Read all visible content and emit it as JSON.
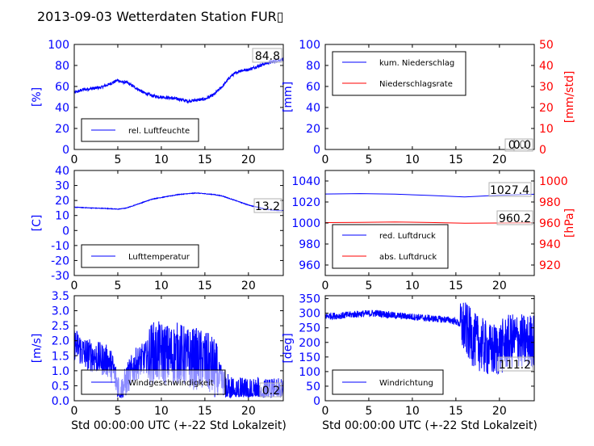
{
  "title": "2013-09-03 Wetterdaten Station FUR▯",
  "colors": {
    "primary": "#0000ff",
    "secondary": "#ff0000",
    "axis": "#000000"
  },
  "chart_data": [
    {
      "id": "humidity",
      "type": "line",
      "ylabel": "[%]",
      "xlim": [
        0,
        24
      ],
      "xticks": [
        0,
        5,
        10,
        15,
        20
      ],
      "ylim": [
        0,
        100
      ],
      "yticks": [
        0,
        20,
        40,
        60,
        80,
        100
      ],
      "series": [
        {
          "name": "rel. Luftfeuchte",
          "color": "#0000ff",
          "x": [
            0,
            1,
            2,
            3,
            4,
            5,
            5.5,
            6,
            7,
            8,
            9,
            10,
            11,
            12,
            13,
            14,
            15,
            16,
            17,
            18,
            19,
            20,
            21,
            22,
            23,
            24
          ],
          "y": [
            54,
            57,
            58,
            59,
            62,
            66,
            64,
            64,
            59,
            54,
            51,
            50,
            49,
            48,
            46,
            47,
            48,
            52,
            60,
            70,
            75,
            76,
            79,
            82,
            84,
            86
          ],
          "noise": 1.5
        }
      ],
      "annotations": [
        {
          "text": "84.8"
        }
      ]
    },
    {
      "id": "precipitation",
      "type": "line",
      "ylabel": "[mm]",
      "ylabel_right": "[mm/std]",
      "xlim": [
        0,
        24
      ],
      "xticks": [
        0,
        5,
        10,
        15,
        20
      ],
      "ylim": [
        0,
        100
      ],
      "yticks": [
        0,
        20,
        40,
        60,
        80,
        100
      ],
      "ylim_right": [
        0,
        50
      ],
      "yticks_right": [
        0,
        10,
        20,
        30,
        40,
        50
      ],
      "series": [
        {
          "name": "kum. Niederschlag",
          "color": "#0000ff",
          "axis": "left",
          "x": [
            0,
            24
          ],
          "y": [
            0,
            0
          ]
        },
        {
          "name": "Niederschlagsrate",
          "color": "#ff0000",
          "axis": "right",
          "x": [
            0,
            24
          ],
          "y": [
            0,
            0
          ]
        }
      ],
      "annotations": [
        {
          "text": "0.0"
        },
        {
          "text": "0.0"
        }
      ]
    },
    {
      "id": "temperature",
      "type": "line",
      "ylabel": "[C]",
      "xlim": [
        0,
        24
      ],
      "xticks": [
        0,
        5,
        10,
        15,
        20
      ],
      "ylim": [
        -30,
        40
      ],
      "yticks": [
        -30,
        -20,
        -10,
        0,
        10,
        20,
        30,
        40
      ],
      "series": [
        {
          "name": "Lufttemperatur",
          "color": "#0000ff",
          "x": [
            0,
            1,
            2,
            3,
            4,
            5,
            6,
            7,
            8,
            9,
            10,
            11,
            12,
            13,
            14,
            15,
            16,
            17,
            18,
            19,
            20,
            21,
            22,
            23,
            24
          ],
          "y": [
            15.5,
            15.3,
            15,
            14.8,
            14.6,
            14.2,
            15,
            17,
            19,
            21,
            22,
            23,
            24,
            24.5,
            25,
            24.5,
            24,
            23,
            21,
            19,
            17,
            15.5,
            14.2,
            13.5,
            13.2
          ],
          "noise": 0.2
        }
      ],
      "annotations": [
        {
          "text": "13.2"
        }
      ]
    },
    {
      "id": "pressure",
      "type": "line",
      "ylabel_right": "[hPa]",
      "xlim": [
        0,
        24
      ],
      "xticks": [
        0,
        5,
        10,
        15,
        20
      ],
      "ylim": [
        950,
        1050
      ],
      "yticks": [
        960,
        980,
        1000,
        1020,
        1040
      ],
      "ylim_right": [
        910,
        1010
      ],
      "yticks_right": [
        920,
        940,
        960,
        980,
        1000
      ],
      "series": [
        {
          "name": "red. Luftdruck",
          "color": "#0000ff",
          "axis": "left",
          "x": [
            0,
            4,
            8,
            12,
            16,
            20,
            24
          ],
          "y": [
            1027.6,
            1028.0,
            1027.5,
            1026.2,
            1024.8,
            1026.5,
            1027.4
          ]
        },
        {
          "name": "abs. Luftdruck",
          "color": "#ff0000",
          "axis": "right",
          "x": [
            0,
            4,
            8,
            12,
            16,
            20,
            24
          ],
          "y": [
            960.4,
            960.6,
            961.0,
            960.5,
            959.8,
            960.0,
            960.2
          ]
        }
      ],
      "annotations": [
        {
          "text": "1027.4"
        },
        {
          "text": "960.2"
        }
      ]
    },
    {
      "id": "windspeed",
      "type": "line",
      "ylabel": "[m/s]",
      "xlabel": "Std 00:00:00 UTC (+-22 Std Lokalzeit)",
      "xlim": [
        0,
        24
      ],
      "xticks": [
        0,
        5,
        10,
        15,
        20
      ],
      "ylim": [
        0,
        3.5
      ],
      "yticks": [
        0.0,
        0.5,
        1.0,
        1.5,
        2.0,
        2.5,
        3.0,
        3.5
      ],
      "series": [
        {
          "name": "Windgeschwindigkeit",
          "color": "#0000ff",
          "x": [
            0,
            0.5,
            1,
            2,
            3,
            4,
            4.5,
            5,
            5.5,
            6,
            7,
            8,
            9,
            10,
            11,
            12,
            13,
            14,
            15,
            16,
            16.5,
            17,
            17.5,
            18,
            19,
            20,
            21,
            22,
            23,
            24
          ],
          "y": [
            1.9,
            1.8,
            1.6,
            1.5,
            1.4,
            1.3,
            1.0,
            0.5,
            0.3,
            0.7,
            1.2,
            1.4,
            1.6,
            1.6,
            1.5,
            1.6,
            1.4,
            1.4,
            1.3,
            1.1,
            0.8,
            0.6,
            0.4,
            0.3,
            0.25,
            0.2,
            0.25,
            0.2,
            0.2,
            0.2
          ],
          "noise": 0.55
        }
      ],
      "annotations": [
        {
          "text": "0.2"
        }
      ]
    },
    {
      "id": "winddirection",
      "type": "line",
      "ylabel": "[deg]",
      "xlabel": "Std 00:00:00 UTC (+-22 Std Lokalzeit)",
      "xlim": [
        0,
        24
      ],
      "xticks": [
        0,
        5,
        10,
        15,
        20
      ],
      "ylim": [
        0,
        360
      ],
      "yticks": [
        0,
        50,
        100,
        150,
        200,
        250,
        300,
        350
      ],
      "series": [
        {
          "name": "Windrichtung",
          "color": "#0000ff",
          "x": [
            0,
            2,
            4,
            6,
            8,
            10,
            12,
            14,
            15,
            16,
            17,
            18,
            19,
            20,
            21,
            22,
            23,
            24
          ],
          "y": [
            290,
            292,
            298,
            300,
            292,
            288,
            282,
            278,
            272,
            250,
            210,
            190,
            170,
            180,
            200,
            210,
            200,
            210
          ],
          "noise": 12,
          "noise_late": 95,
          "noise_from_x": 15.5
        }
      ],
      "annotations": [
        {
          "text": "111.2"
        }
      ]
    }
  ]
}
